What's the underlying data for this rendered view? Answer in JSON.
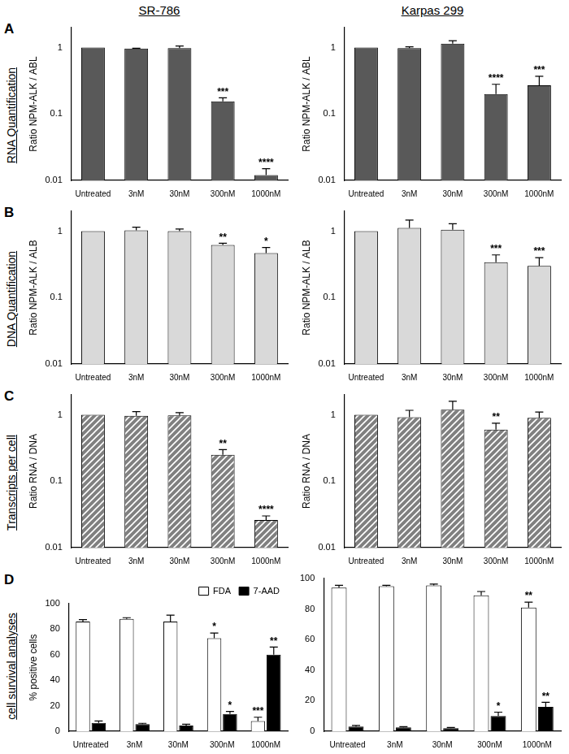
{
  "columns": [
    "SR-786",
    "Karpas 299"
  ],
  "rows": [
    {
      "panel": "A",
      "label": "RNA Quantification"
    },
    {
      "panel": "B",
      "label": "DNA Quantification"
    },
    {
      "panel": "C",
      "label": "Transcripts per cell"
    },
    {
      "panel": "D",
      "label": "cell survival analyses"
    }
  ],
  "chart_data": [
    {
      "type": "bar",
      "ylabel": "Ratio NPM-ALK / ABL",
      "log": "y",
      "grid": false,
      "categories": [
        "Untreated",
        "3nM",
        "30nM",
        "300nM",
        "1000nM"
      ],
      "values": [
        1,
        0.97,
        0.98,
        0.155,
        0.012
      ],
      "errors": [
        0,
        0.01,
        0.08,
        0.02,
        0.003
      ],
      "annotations": [
        null,
        null,
        null,
        "***",
        "****"
      ],
      "color": "#595959",
      "ylim": [
        0.01,
        2
      ],
      "yticks": [
        0.01,
        0.1,
        1
      ]
    },
    {
      "type": "bar",
      "ylabel": "Ratio NPM-ALK / ABL",
      "log": "y",
      "grid": false,
      "categories": [
        "Untreated",
        "3nM",
        "30nM",
        "300nM",
        "1000nM"
      ],
      "values": [
        1,
        0.98,
        1.15,
        0.2,
        0.27
      ],
      "errors": [
        0,
        0.05,
        0.12,
        0.08,
        0.1
      ],
      "annotations": [
        null,
        null,
        null,
        "****",
        "***"
      ],
      "color": "#595959",
      "ylim": [
        0.01,
        2
      ],
      "yticks": [
        0.01,
        0.1,
        1
      ]
    },
    {
      "type": "bar",
      "ylabel": "Ratio NPM-ALK / ALB",
      "log": "y",
      "grid": false,
      "categories": [
        "Untreated",
        "3nM",
        "30nM",
        "300nM",
        "1000nM"
      ],
      "values": [
        1,
        1.03,
        1.0,
        0.62,
        0.47
      ],
      "errors": [
        0,
        0.12,
        0.08,
        0.04,
        0.1
      ],
      "annotations": [
        null,
        null,
        null,
        "**",
        "*"
      ],
      "color": "#d9d9d9",
      "ylim": [
        0.01,
        2
      ],
      "yticks": [
        0.01,
        0.1,
        1
      ]
    },
    {
      "type": "bar",
      "ylabel": "Ratio NPM-ALK / ALB",
      "log": "y",
      "grid": false,
      "categories": [
        "Untreated",
        "3nM",
        "30nM",
        "300nM",
        "1000nM"
      ],
      "values": [
        1,
        1.12,
        1.05,
        0.34,
        0.3
      ],
      "errors": [
        0,
        0.35,
        0.25,
        0.1,
        0.1
      ],
      "annotations": [
        null,
        null,
        null,
        "***",
        "***"
      ],
      "color": "#d9d9d9",
      "ylim": [
        0.01,
        2
      ],
      "yticks": [
        0.01,
        0.1,
        1
      ]
    },
    {
      "type": "bar",
      "ylabel": "Ratio RNA / DNA",
      "log": "y",
      "grid": false,
      "categories": [
        "Untreated",
        "3nM",
        "30nM",
        "300nM",
        "1000nM"
      ],
      "values": [
        1,
        0.97,
        0.98,
        0.25,
        0.026
      ],
      "errors": [
        0,
        0.15,
        0.1,
        0.05,
        0.004
      ],
      "annotations": [
        null,
        null,
        null,
        "**",
        "****"
      ],
      "color": "#808080",
      "ylim": [
        0.01,
        2
      ],
      "yticks": [
        0.01,
        0.1,
        1
      ]
    },
    {
      "type": "bar",
      "ylabel": "Ratio RNA / DNA",
      "log": "y",
      "grid": false,
      "categories": [
        "Untreated",
        "3nM",
        "30nM",
        "300nM",
        "1000nM"
      ],
      "values": [
        1,
        0.92,
        1.2,
        0.6,
        0.9
      ],
      "errors": [
        0,
        0.25,
        0.4,
        0.15,
        0.2
      ],
      "annotations": [
        null,
        null,
        null,
        "**",
        null
      ],
      "color": "#808080",
      "ylim": [
        0.01,
        2
      ],
      "yticks": [
        0.01,
        0.1,
        1
      ]
    },
    {
      "type": "bar",
      "ylabel": "% positive cells",
      "grid": false,
      "legend": "upper right",
      "categories": [
        "Untreated",
        "3nM",
        "30nM",
        "300nM",
        "1000nM"
      ],
      "series": [
        {
          "name": "FDA",
          "color": "#ffffff",
          "values": [
            86,
            88,
            86,
            73,
            8
          ],
          "errors": [
            1.5,
            1,
            5,
            4,
            3
          ],
          "annotations": [
            null,
            null,
            null,
            "*",
            "***"
          ]
        },
        {
          "name": "7-AAD",
          "color": "#000000",
          "values": [
            6.5,
            5.5,
            4.5,
            13.5,
            60
          ],
          "errors": [
            1.5,
            0.7,
            1,
            2,
            6
          ],
          "annotations": [
            null,
            null,
            null,
            "*",
            "**"
          ]
        }
      ],
      "ylim": [
        0,
        100
      ],
      "yticks": [
        0,
        20,
        40,
        60,
        80,
        100
      ]
    },
    {
      "type": "bar",
      "grid": false,
      "categories": [
        "Untreated",
        "3nM",
        "30nM",
        "300nM",
        "1000nM"
      ],
      "series": [
        {
          "color": "#ffffff",
          "values": [
            94,
            95,
            95.5,
            89,
            81
          ],
          "errors": [
            1.5,
            0.5,
            0.8,
            2.5,
            3.5
          ],
          "annotations": [
            null,
            null,
            null,
            null,
            "**"
          ]
        },
        {
          "color": "#000000",
          "values": [
            3,
            2.5,
            2,
            10,
            16
          ],
          "errors": [
            0.8,
            0.5,
            0.5,
            2.5,
            3
          ],
          "annotations": [
            null,
            null,
            null,
            "*",
            "**"
          ]
        }
      ],
      "ylim": [
        0,
        100
      ],
      "yticks": [
        0,
        20,
        40,
        60,
        80,
        100
      ]
    }
  ]
}
